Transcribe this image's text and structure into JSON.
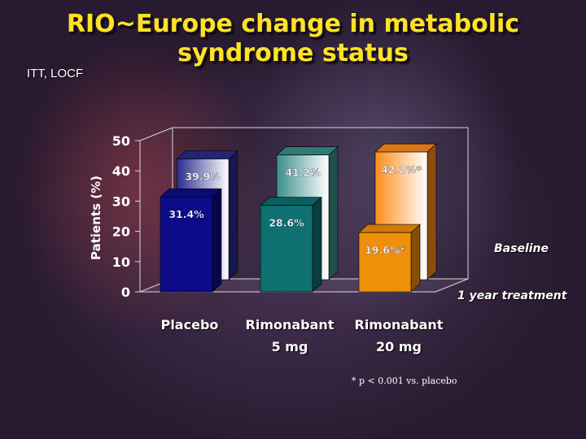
{
  "slide": {
    "title_line1": "RIO~Europe change in metabolic",
    "title_line2": "syndrome status",
    "subtitle": "ITT, LOCF",
    "footnote": "* p < 0.001 vs. placebo"
  },
  "chart_data": {
    "type": "bar",
    "ylabel": "Patients (%)",
    "ylim": [
      0,
      50
    ],
    "yticks": [
      "0",
      "10",
      "20",
      "30",
      "40",
      "50"
    ],
    "category_lines": [
      [
        "Placebo"
      ],
      [
        "Rimonabant",
        "5 mg"
      ],
      [
        "Rimonabant",
        "20 mg"
      ]
    ],
    "series": [
      {
        "name": "Baseline",
        "values": [
          39.9,
          41.2,
          42.2
        ],
        "labels": [
          "39.9%",
          "41.2%",
          "42.2%*"
        ],
        "colors": [
          "#2a2a8c",
          "#3a8f8a",
          "#ff8c1a"
        ]
      },
      {
        "name": "1 year treatment",
        "values": [
          31.4,
          28.6,
          19.6
        ],
        "labels": [
          "31.4%",
          "28.6%",
          "19.6%*"
        ],
        "colors": [
          "#0c0c8a",
          "#0e7070",
          "#f0900a"
        ]
      }
    ]
  }
}
